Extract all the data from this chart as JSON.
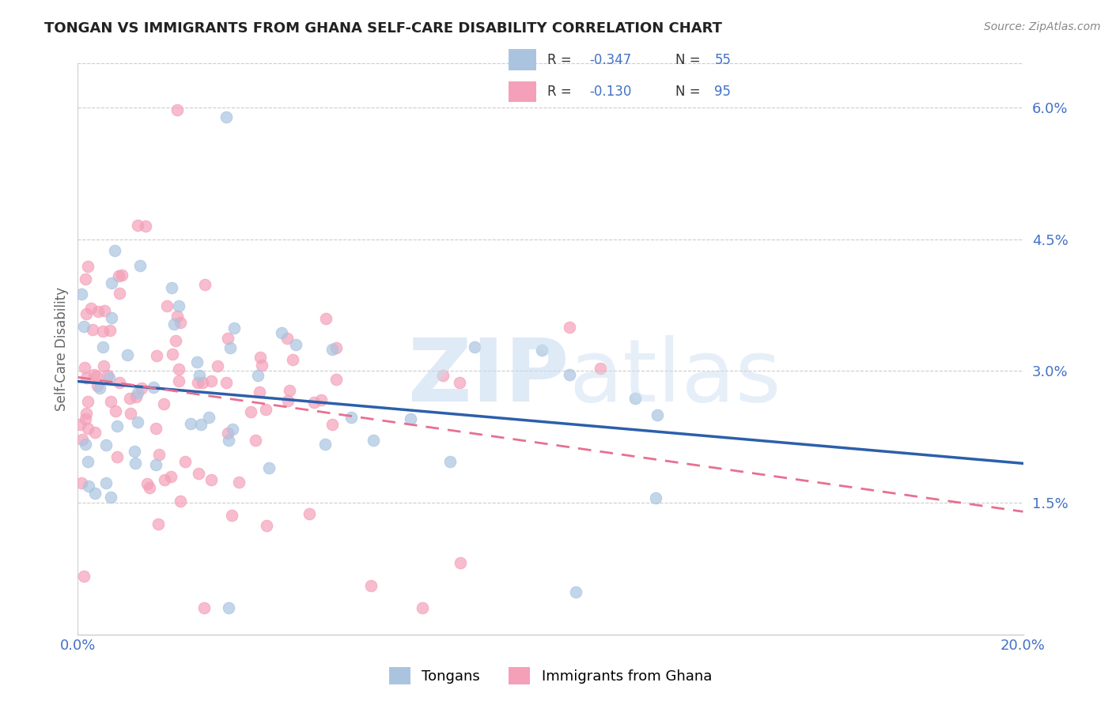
{
  "title": "TONGAN VS IMMIGRANTS FROM GHANA SELF-CARE DISABILITY CORRELATION CHART",
  "source": "Source: ZipAtlas.com",
  "ylabel": "Self-Care Disability",
  "xmin": 0.0,
  "xmax": 0.2,
  "ymin": 0.0,
  "ymax": 0.065,
  "yticks": [
    0.015,
    0.03,
    0.045,
    0.06
  ],
  "ytick_labels": [
    "1.5%",
    "3.0%",
    "4.5%",
    "6.0%"
  ],
  "xticks": [
    0.0,
    0.05,
    0.1,
    0.15,
    0.2
  ],
  "xtick_labels": [
    "0.0%",
    "",
    "",
    "",
    "20.0%"
  ],
  "tongan_color": "#aac4e0",
  "ghana_color": "#f4a0b8",
  "tongan_line_color": "#2c5faa",
  "ghana_line_color": "#e87090",
  "R_tongan": -0.347,
  "N_tongan": 55,
  "R_ghana": -0.13,
  "N_ghana": 95,
  "legend_labels": [
    "Tongans",
    "Immigrants from Ghana"
  ],
  "background_color": "#ffffff",
  "grid_color": "#cccccc",
  "axis_color": "#4472c4",
  "text_color": "#333333"
}
